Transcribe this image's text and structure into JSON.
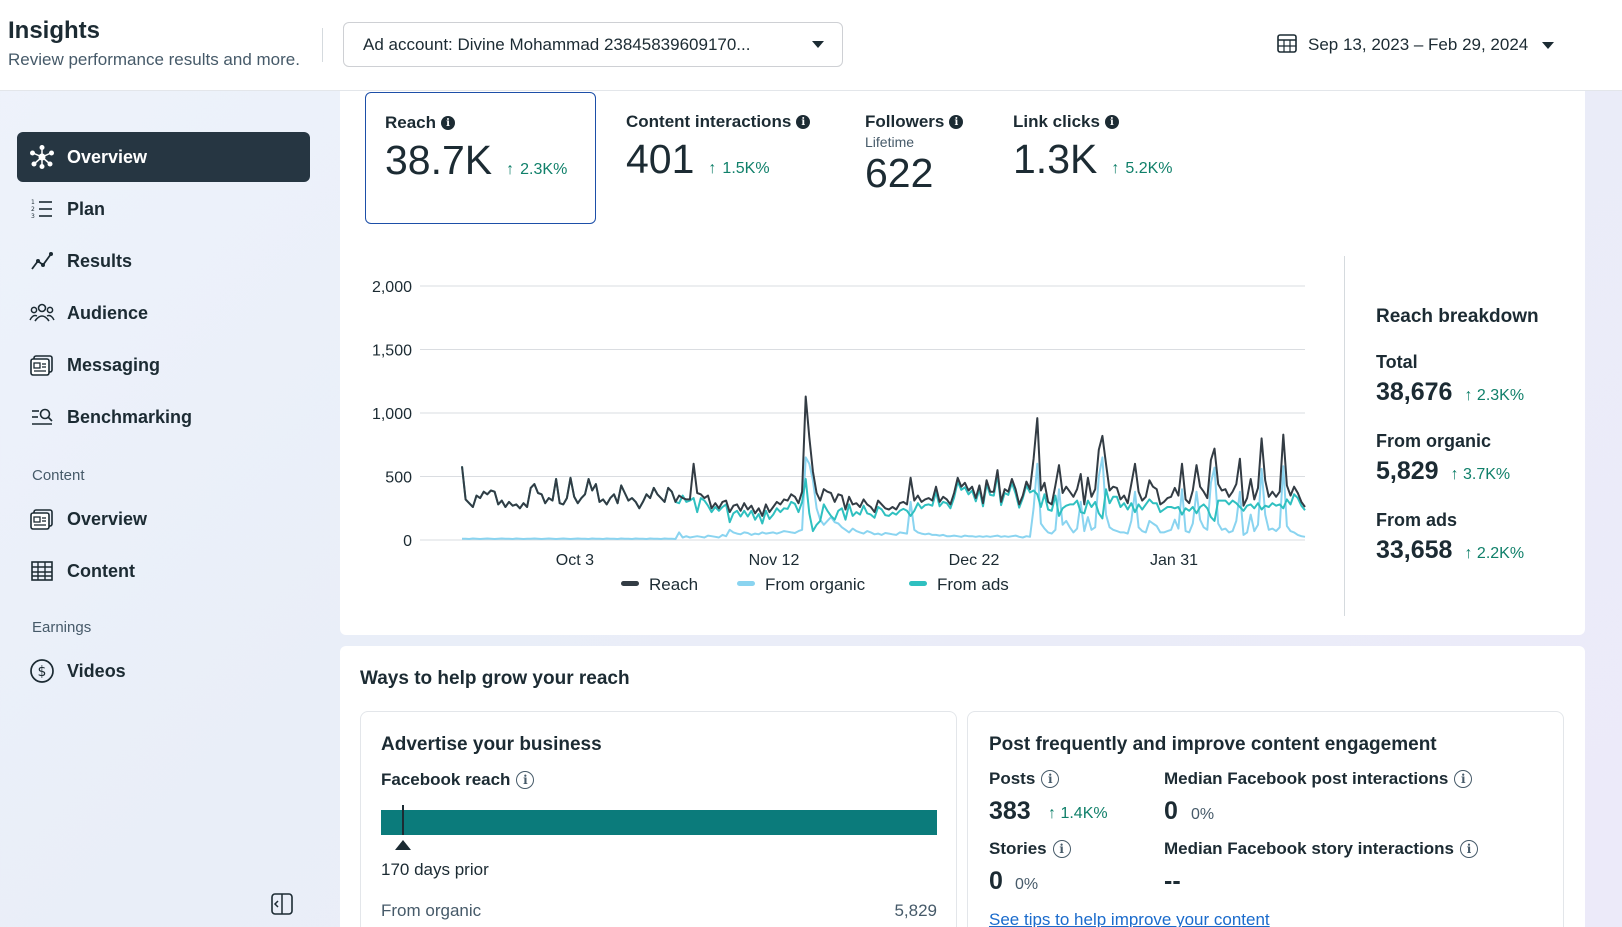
{
  "header": {
    "title": "Insights",
    "subtitle": "Review performance results and more.",
    "account_label": "Ad account: Divine Mohammad 23845839609170...",
    "date_range": "Sep 13, 2023 – Feb 29, 2024"
  },
  "sidebar": {
    "items": [
      {
        "label": "Overview",
        "icon": "overview-icon",
        "active": true
      },
      {
        "label": "Plan",
        "icon": "plan-list-icon"
      },
      {
        "label": "Results",
        "icon": "results-trend-icon"
      },
      {
        "label": "Audience",
        "icon": "audience-people-icon"
      },
      {
        "label": "Messaging",
        "icon": "messaging-icon"
      },
      {
        "label": "Benchmarking",
        "icon": "benchmarking-icon"
      }
    ],
    "content_section": "Content",
    "content_items": [
      {
        "label": "Overview",
        "icon": "content-overview-icon"
      },
      {
        "label": "Content",
        "icon": "content-table-icon"
      }
    ],
    "earnings_section": "Earnings",
    "earnings_items": [
      {
        "label": "Videos",
        "icon": "dollar-circle-icon"
      }
    ]
  },
  "metrics": [
    {
      "title": "Reach",
      "value": "38.7K",
      "change": "2.3K%",
      "selected": true
    },
    {
      "title": "Content interactions",
      "value": "401",
      "change": "1.5K%"
    },
    {
      "title": "Followers",
      "sub": "Lifetime",
      "value": "622"
    },
    {
      "title": "Link clicks",
      "value": "1.3K",
      "change": "5.2K%"
    }
  ],
  "breakdown": {
    "title": "Reach breakdown",
    "rows": [
      {
        "label": "Total",
        "value": "38,676",
        "change": "2.3K%"
      },
      {
        "label": "From organic",
        "value": "5,829",
        "change": "3.7K%"
      },
      {
        "label": "From ads",
        "value": "33,658",
        "change": "2.2K%"
      }
    ]
  },
  "grow": {
    "title": "Ways to help grow your reach",
    "advertise": {
      "title": "Advertise your business",
      "reach_label": "Facebook reach",
      "marker_label": "170 days prior",
      "organic_label": "From organic",
      "organic_value": "5,829",
      "organic_share": 0.04
    },
    "engagement": {
      "title": "Post frequently and improve content engagement",
      "posts_label": "Posts",
      "posts_value": "383",
      "posts_change": "1.4K%",
      "median_post_label": "Median Facebook post interactions",
      "median_post_value": "0",
      "median_post_change": "0%",
      "stories_label": "Stories",
      "stories_value": "0",
      "stories_change": "0%",
      "median_story_label": "Median Facebook story interactions",
      "median_story_value": "--",
      "tips_link": "See tips to help improve your content"
    }
  },
  "colors": {
    "reach": "#333c44",
    "organic": "#8ad4f0",
    "ads": "#2fc0c0",
    "positive": "#10806a",
    "bar": "#0b7b7b"
  },
  "chart_data": {
    "type": "line",
    "ylim": [
      0,
      2000
    ],
    "yticks": [
      "0",
      "500",
      "1,000",
      "1,500",
      "2,000"
    ],
    "xticks": [
      "Oct 3",
      "Nov 12",
      "Dec 22",
      "Jan 31"
    ],
    "x_start": "Sep 13, 2023",
    "x_end": "Feb 29, 2024",
    "legend": [
      "Reach",
      "From organic",
      "From ads"
    ],
    "series": [
      {
        "name": "Reach",
        "values": [
          580,
          320,
          290,
          260,
          350,
          330,
          380,
          360,
          390,
          380,
          280,
          310,
          260,
          300,
          270,
          280,
          250,
          290,
          260,
          410,
          440,
          370,
          360,
          290,
          330,
          310,
          480,
          290,
          280,
          330,
          490,
          340,
          290,
          330,
          360,
          480,
          390,
          440,
          300,
          320,
          280,
          330,
          360,
          290,
          430,
          370,
          310,
          330,
          300,
          250,
          300,
          360,
          330,
          410,
          360,
          330,
          300,
          410,
          380,
          300,
          350,
          330,
          320,
          320,
          600,
          370,
          360,
          330,
          350,
          250,
          290,
          250,
          300,
          310,
          220,
          270,
          280,
          230,
          290,
          240,
          270,
          210,
          250,
          190,
          280,
          220,
          260,
          300,
          280,
          320,
          310,
          360,
          340,
          290,
          380,
          1130,
          810,
          540,
          370,
          310,
          400,
          380,
          370,
          300,
          360,
          350,
          240,
          340,
          280,
          290,
          260,
          320,
          280,
          260,
          220,
          310,
          280,
          250,
          240,
          260,
          240,
          290,
          300,
          280,
          490,
          310,
          350,
          300,
          320,
          330,
          310,
          420,
          300,
          340,
          320,
          280,
          370,
          490,
          420,
          450,
          390,
          420,
          330,
          430,
          290,
          470,
          380,
          380,
          550,
          300,
          400,
          380,
          480,
          400,
          280,
          350,
          460,
          400,
          640,
          960,
          390,
          450,
          300,
          280,
          430,
          590,
          370,
          420,
          380,
          340,
          400,
          520,
          280,
          490,
          340,
          400,
          710,
          820,
          600,
          390,
          420,
          410,
          320,
          350,
          290,
          440,
          600,
          380,
          310,
          340,
          470,
          420,
          400,
          280,
          300,
          330,
          340,
          410,
          350,
          600,
          320,
          290,
          390,
          590,
          420,
          380,
          330,
          630,
          720,
          440,
          390,
          400,
          340,
          380,
          440,
          640,
          270,
          330,
          480,
          320,
          410,
          800,
          470,
          340,
          380,
          340,
          380,
          830,
          430,
          350,
          420,
          370,
          300,
          260
        ]
      },
      {
        "name": "From organic",
        "values": [
          10,
          10,
          8,
          12,
          10,
          8,
          10,
          12,
          10,
          8,
          10,
          12,
          10,
          10,
          8,
          12,
          10,
          8,
          10,
          10,
          12,
          10,
          8,
          10,
          12,
          10,
          8,
          10,
          12,
          10,
          8,
          10,
          12,
          10,
          10,
          8,
          12,
          10,
          10,
          8,
          12,
          10,
          10,
          8,
          12,
          10,
          10,
          8,
          12,
          10,
          10,
          8,
          12,
          10,
          10,
          8,
          12,
          10,
          10,
          8,
          60,
          20,
          30,
          20,
          25,
          30,
          25,
          20,
          35,
          30,
          25,
          20,
          40,
          30,
          80,
          60,
          50,
          45,
          60,
          55,
          40,
          50,
          45,
          60,
          50,
          55,
          60,
          50,
          60,
          70,
          65,
          60,
          55,
          70,
          80,
          650,
          600,
          470,
          250,
          160,
          120,
          150,
          180,
          140,
          130,
          100,
          80,
          60,
          90,
          70,
          60,
          50,
          70,
          60,
          45,
          50,
          40,
          55,
          50,
          45,
          40,
          60,
          55,
          50,
          300,
          80,
          60,
          50,
          45,
          50,
          40,
          40,
          35,
          40,
          30,
          30,
          35,
          30,
          25,
          35,
          30,
          30,
          25,
          30,
          25,
          30,
          25,
          30,
          35,
          25,
          30,
          25,
          30,
          35,
          25,
          20,
          30,
          25,
          250,
          600,
          130,
          90,
          60,
          50,
          80,
          400,
          120,
          150,
          100,
          60,
          90,
          300,
          70,
          180,
          80,
          100,
          500,
          650,
          200,
          100,
          80,
          70,
          60,
          60,
          50,
          150,
          380,
          100,
          70,
          60,
          150,
          130,
          110,
          60,
          60,
          70,
          80,
          160,
          90,
          400,
          70,
          60,
          130,
          380,
          160,
          100,
          80,
          450,
          570,
          130,
          80,
          90,
          60,
          70,
          150,
          380,
          40,
          60,
          200,
          70,
          120,
          560,
          200,
          80,
          90,
          70,
          100,
          580,
          110,
          70,
          60,
          40,
          30,
          25
        ]
      },
      {
        "name": "From ads",
        "values": [
          580,
          320,
          290,
          260,
          350,
          330,
          380,
          360,
          390,
          380,
          280,
          310,
          260,
          300,
          270,
          280,
          250,
          290,
          260,
          410,
          440,
          370,
          360,
          290,
          330,
          310,
          480,
          290,
          280,
          330,
          490,
          340,
          290,
          330,
          360,
          480,
          390,
          440,
          300,
          320,
          280,
          330,
          360,
          290,
          430,
          370,
          310,
          330,
          300,
          250,
          300,
          360,
          330,
          410,
          360,
          330,
          300,
          410,
          380,
          300,
          290,
          350,
          300,
          310,
          330,
          220,
          330,
          310,
          270,
          220,
          260,
          230,
          260,
          280,
          140,
          210,
          230,
          185,
          230,
          185,
          230,
          160,
          205,
          130,
          230,
          165,
          200,
          250,
          220,
          250,
          245,
          300,
          285,
          220,
          300,
          480,
          210,
          70,
          120,
          150,
          280,
          230,
          190,
          160,
          230,
          250,
          160,
          280,
          190,
          220,
          200,
          270,
          210,
          200,
          175,
          260,
          240,
          195,
          190,
          215,
          200,
          230,
          245,
          230,
          190,
          230,
          290,
          250,
          275,
          280,
          270,
          380,
          265,
          300,
          290,
          250,
          335,
          460,
          395,
          415,
          360,
          390,
          305,
          400,
          265,
          440,
          355,
          350,
          515,
          275,
          370,
          355,
          450,
          365,
          255,
          330,
          430,
          375,
          390,
          360,
          260,
          360,
          240,
          230,
          350,
          190,
          250,
          270,
          280,
          280,
          310,
          220,
          210,
          310,
          260,
          300,
          210,
          170,
          400,
          290,
          340,
          340,
          260,
          290,
          240,
          290,
          220,
          280,
          240,
          280,
          320,
          290,
          290,
          220,
          240,
          260,
          260,
          250,
          260,
          200,
          250,
          230,
          260,
          210,
          260,
          280,
          250,
          180,
          150,
          310,
          310,
          310,
          280,
          310,
          290,
          260,
          230,
          270,
          280,
          250,
          290,
          240,
          270,
          260,
          290,
          270,
          280,
          250,
          320,
          280,
          360,
          330,
          270,
          235
        ]
      }
    ]
  }
}
